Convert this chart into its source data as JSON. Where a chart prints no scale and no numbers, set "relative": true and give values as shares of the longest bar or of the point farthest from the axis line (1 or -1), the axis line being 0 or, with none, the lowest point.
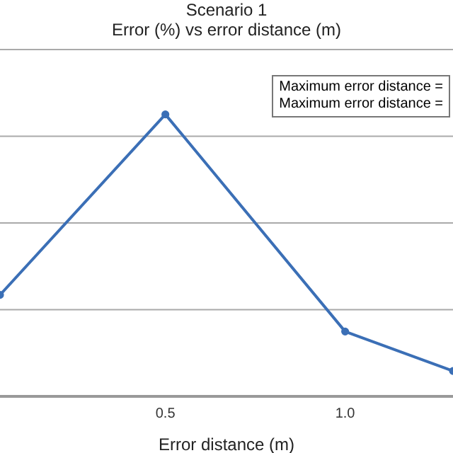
{
  "chart_data": {
    "type": "line",
    "title": "Scenario 1",
    "subtitle": "Error (%) vs error distance (m)",
    "xlabel": "Error distance (m)",
    "relative": true,
    "x": [
      0.04,
      0.5,
      1.0,
      1.3
    ],
    "series": [
      {
        "color": "#3b6fb6",
        "values": [
          0.36,
          1,
          0.23,
          0.09
        ]
      }
    ],
    "xlim": [
      0.04,
      1.3
    ],
    "xticks": [
      0.5,
      {
        "value": 1,
        "label": "1.0"
      }
    ],
    "annotations": [
      "Maximum error distance =",
      "Maximum error distance ="
    ],
    "grid": "y",
    "marker": "circle",
    "line_style": "solid"
  }
}
